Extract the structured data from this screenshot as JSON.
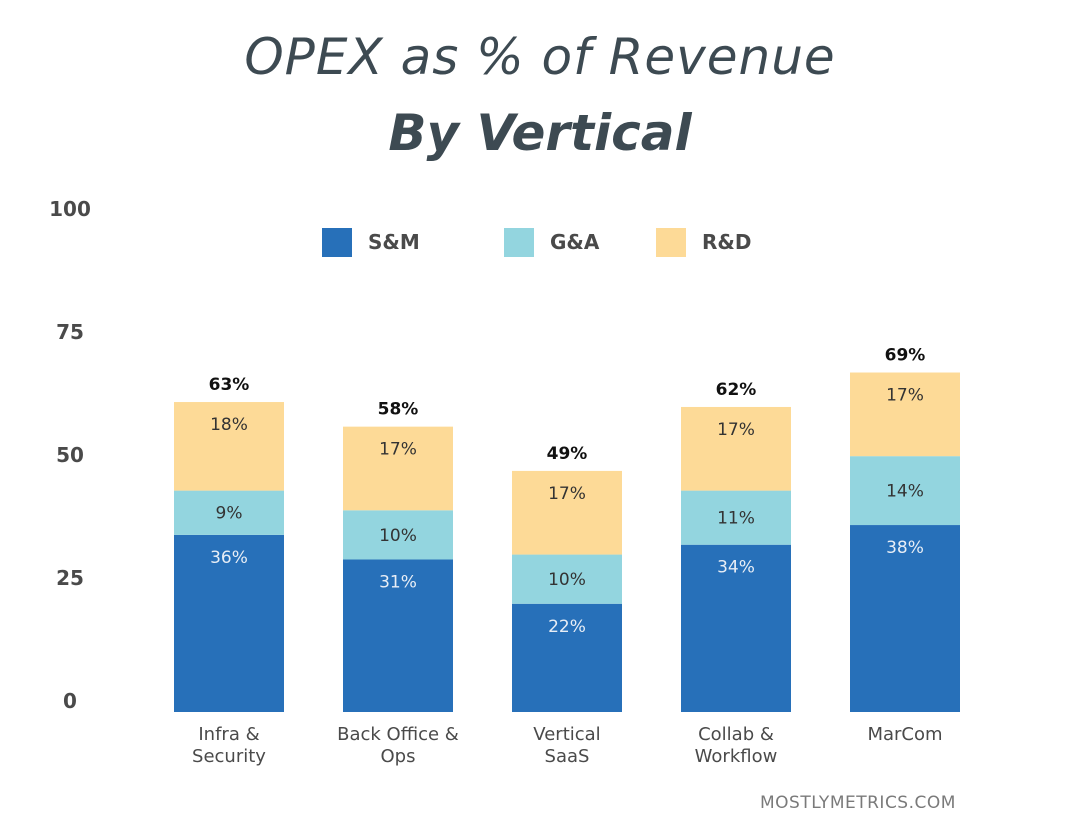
{
  "title": "OPEX as % of Revenue",
  "subtitle": "By Vertical",
  "watermark": "MOSTLYMETRICS.COM",
  "colors": {
    "sm": "#2770b9",
    "ga": "#93d5df",
    "rd": "#fdda97",
    "axis_text": "#4a4a4a",
    "label_dark": "#333333",
    "label_light": "#e8eef6"
  },
  "chart_data": {
    "type": "bar",
    "stacked": true,
    "title": "OPEX as % of Revenue",
    "subtitle": "By Vertical",
    "xlabel": "",
    "ylabel": "",
    "ylim": [
      0,
      100
    ],
    "yticks": [
      0,
      25,
      50,
      75,
      100
    ],
    "grid": false,
    "legend": {
      "position": "top-center",
      "entries": [
        "S&M",
        "G&A",
        "R&D"
      ]
    },
    "categories": [
      [
        "Infra &",
        "Security"
      ],
      [
        "Back Office &",
        "Ops"
      ],
      [
        "Vertical",
        "SaaS"
      ],
      [
        "Collab &",
        "Workflow"
      ],
      [
        "MarCom"
      ]
    ],
    "series": [
      {
        "name": "S&M",
        "values": [
          36,
          31,
          22,
          34,
          38
        ],
        "labels": [
          "36%",
          "31%",
          "22%",
          "34%",
          "38%"
        ]
      },
      {
        "name": "G&A",
        "values": [
          9,
          10,
          10,
          11,
          14
        ],
        "labels": [
          "9%",
          "10%",
          "10%",
          "11%",
          "14%"
        ]
      },
      {
        "name": "R&D",
        "values": [
          18,
          17,
          17,
          17,
          17
        ],
        "labels": [
          "18%",
          "17%",
          "17%",
          "17%",
          "17%"
        ]
      }
    ],
    "totals": [
      63,
      58,
      49,
      62,
      69
    ],
    "total_labels": [
      "63%",
      "58%",
      "49%",
      "62%",
      "69%"
    ]
  }
}
